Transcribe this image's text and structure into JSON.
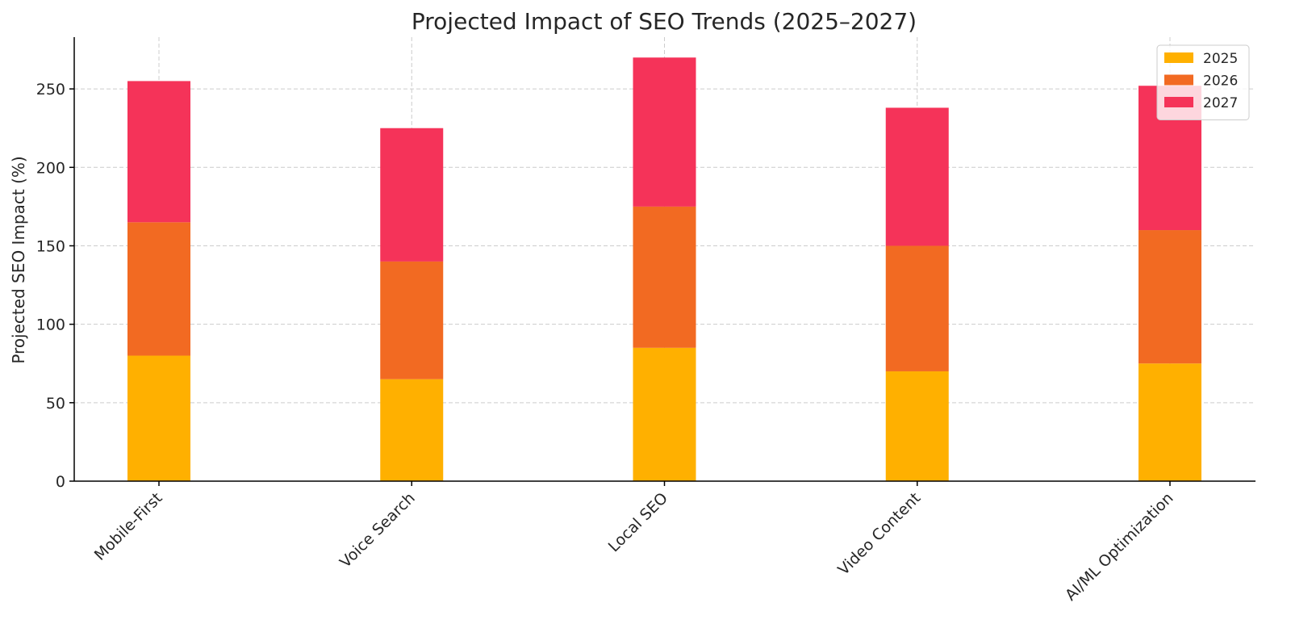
{
  "chart_data": {
    "type": "bar",
    "stacked": true,
    "title": "Projected Impact of SEO Trends (2025–2027)",
    "xlabel": "",
    "ylabel": "Projected SEO Impact (%)",
    "categories": [
      "Mobile-First",
      "Voice Search",
      "Local SEO",
      "Video Content",
      "AI/ML Optimization"
    ],
    "series": [
      {
        "name": "2025",
        "color": "#FFB000",
        "values": [
          80,
          65,
          85,
          70,
          75
        ]
      },
      {
        "name": "2026",
        "color": "#F26A22",
        "values": [
          85,
          75,
          90,
          80,
          85
        ]
      },
      {
        "name": "2027",
        "color": "#F53359",
        "values": [
          90,
          85,
          95,
          88,
          92
        ]
      }
    ],
    "ylim": [
      0,
      283
    ],
    "yticks": [
      0,
      50,
      100,
      150,
      200,
      250
    ],
    "grid": true,
    "legend_position": "top-right"
  }
}
